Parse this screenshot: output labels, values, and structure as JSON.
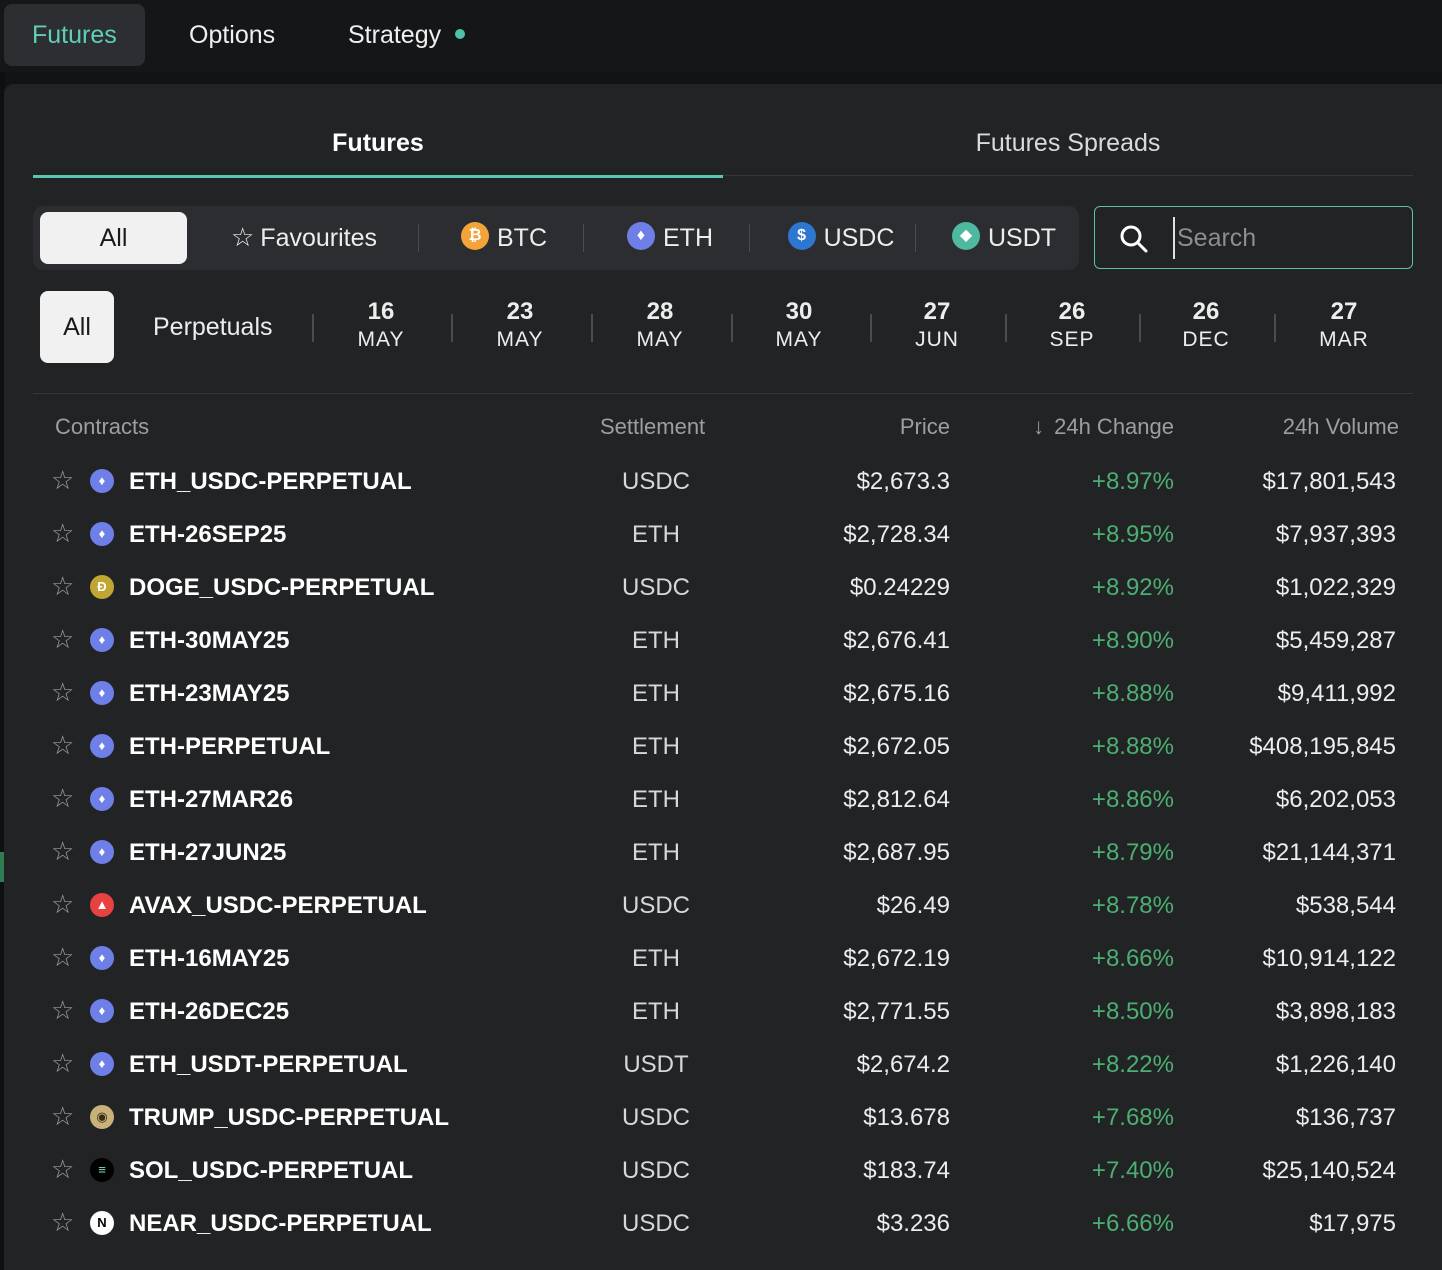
{
  "top_tabs": [
    {
      "label": "Futures",
      "active": true
    },
    {
      "label": "Options",
      "active": false
    },
    {
      "label": "Strategy",
      "active": false,
      "dot": true
    }
  ],
  "sub_tabs": [
    {
      "label": "Futures",
      "active": true
    },
    {
      "label": "Futures Spreads",
      "active": false
    }
  ],
  "filters": {
    "all": "All",
    "favourites": "Favourites",
    "btc": "BTC",
    "eth": "ETH",
    "usdc": "USDC",
    "usdt": "USDT"
  },
  "search": {
    "placeholder": "Search",
    "value": ""
  },
  "expiries": {
    "all": "All",
    "perpetuals": "Perpetuals",
    "dates": [
      {
        "day": "16",
        "month": "MAY"
      },
      {
        "day": "23",
        "month": "MAY"
      },
      {
        "day": "28",
        "month": "MAY"
      },
      {
        "day": "30",
        "month": "MAY"
      },
      {
        "day": "27",
        "month": "JUN"
      },
      {
        "day": "26",
        "month": "SEP"
      },
      {
        "day": "26",
        "month": "DEC"
      },
      {
        "day": "27",
        "month": "MAR"
      }
    ]
  },
  "table": {
    "headers": {
      "contracts": "Contracts",
      "settlement": "Settlement",
      "price": "Price",
      "change": "24h Change",
      "volume": "24h Volume"
    },
    "rows": [
      {
        "icon": "eth-icon",
        "name": "ETH_USDC-PERPETUAL",
        "settlement": "USDC",
        "price": "$2,673.3",
        "change": "+8.97%",
        "volume": "$17,801,543"
      },
      {
        "icon": "eth-icon",
        "name": "ETH-26SEP25",
        "settlement": "ETH",
        "price": "$2,728.34",
        "change": "+8.95%",
        "volume": "$7,937,393"
      },
      {
        "icon": "doge-icon",
        "name": "DOGE_USDC-PERPETUAL",
        "settlement": "USDC",
        "price": "$0.24229",
        "change": "+8.92%",
        "volume": "$1,022,329"
      },
      {
        "icon": "eth-icon",
        "name": "ETH-30MAY25",
        "settlement": "ETH",
        "price": "$2,676.41",
        "change": "+8.90%",
        "volume": "$5,459,287"
      },
      {
        "icon": "eth-icon",
        "name": "ETH-23MAY25",
        "settlement": "ETH",
        "price": "$2,675.16",
        "change": "+8.88%",
        "volume": "$9,411,992"
      },
      {
        "icon": "eth-icon",
        "name": "ETH-PERPETUAL",
        "settlement": "ETH",
        "price": "$2,672.05",
        "change": "+8.88%",
        "volume": "$408,195,845"
      },
      {
        "icon": "eth-icon",
        "name": "ETH-27MAR26",
        "settlement": "ETH",
        "price": "$2,812.64",
        "change": "+8.86%",
        "volume": "$6,202,053"
      },
      {
        "icon": "eth-icon",
        "name": "ETH-27JUN25",
        "settlement": "ETH",
        "price": "$2,687.95",
        "change": "+8.79%",
        "volume": "$21,144,371"
      },
      {
        "icon": "avax-icon",
        "name": "AVAX_USDC-PERPETUAL",
        "settlement": "USDC",
        "price": "$26.49",
        "change": "+8.78%",
        "volume": "$538,544"
      },
      {
        "icon": "eth-icon",
        "name": "ETH-16MAY25",
        "settlement": "ETH",
        "price": "$2,672.19",
        "change": "+8.66%",
        "volume": "$10,914,122"
      },
      {
        "icon": "eth-icon",
        "name": "ETH-26DEC25",
        "settlement": "ETH",
        "price": "$2,771.55",
        "change": "+8.50%",
        "volume": "$3,898,183"
      },
      {
        "icon": "eth-icon",
        "name": "ETH_USDT-PERPETUAL",
        "settlement": "USDT",
        "price": "$2,674.2",
        "change": "+8.22%",
        "volume": "$1,226,140"
      },
      {
        "icon": "trump-icon",
        "name": "TRUMP_USDC-PERPETUAL",
        "settlement": "USDC",
        "price": "$13.678",
        "change": "+7.68%",
        "volume": "$136,737"
      },
      {
        "icon": "sol-icon",
        "name": "SOL_USDC-PERPETUAL",
        "settlement": "USDC",
        "price": "$183.74",
        "change": "+7.40%",
        "volume": "$25,140,524"
      },
      {
        "icon": "near-icon",
        "name": "NEAR_USDC-PERPETUAL",
        "settlement": "USDC",
        "price": "$3.236",
        "change": "+6.66%",
        "volume": "$17,975"
      }
    ]
  },
  "colors": {
    "accent": "#57c9b2",
    "positive": "#4caf72",
    "background": "#222325"
  }
}
